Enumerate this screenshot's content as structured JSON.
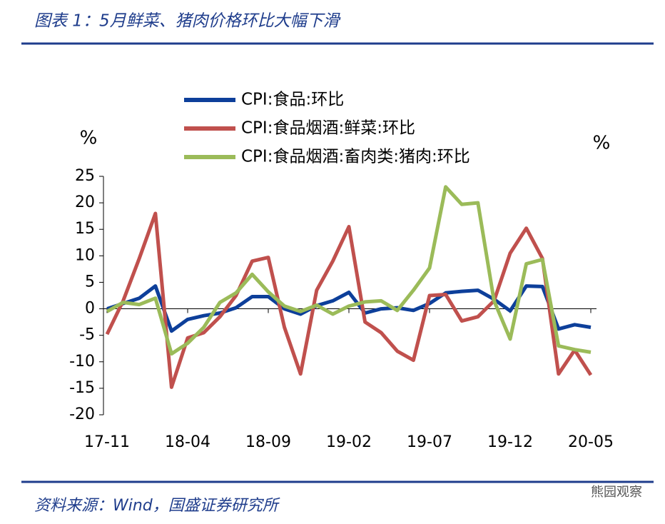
{
  "header": {
    "title": "图表 1：5月鲜菜、猪肉价格环比大幅下滑"
  },
  "footer": {
    "source": "资料来源：Wind，国盛证券研究所",
    "watermark": "熊园观察"
  },
  "chart_data": {
    "type": "line",
    "y_label": "%",
    "y2_label": "%",
    "categories": [
      "17-11",
      null,
      null,
      null,
      null,
      "18-04",
      null,
      null,
      null,
      null,
      "18-09",
      null,
      null,
      null,
      null,
      "19-02",
      null,
      null,
      null,
      null,
      "19-07",
      null,
      null,
      null,
      null,
      "19-12",
      null,
      null,
      null,
      null,
      "20-05"
    ],
    "series": [
      {
        "name": "CPI:食品:环比",
        "color": "#0d3f9a",
        "values": [
          0,
          1,
          2,
          4.3,
          -4.2,
          -2,
          -1.3,
          -0.8,
          0.2,
          2.3,
          2.3,
          0,
          -1,
          0.6,
          1.5,
          3.1,
          -0.8,
          0,
          0.2,
          -0.3,
          1,
          3,
          3.3,
          3.5,
          1.8,
          -0.4,
          4.3,
          4.2,
          -3.8,
          -3,
          -3.5
        ]
      },
      {
        "name": "CPI:食品烟酒:鲜菜:环比",
        "color": "#c0504d",
        "values": [
          -4.8,
          1.5,
          9.5,
          18,
          -14.8,
          -5.5,
          -4.5,
          -1.5,
          2.5,
          9,
          9.7,
          -3.5,
          -12.3,
          3.5,
          9,
          15.5,
          -2.5,
          -4.5,
          -8,
          -9.7,
          2.5,
          2.7,
          -2.3,
          -1.5,
          1.5,
          10.5,
          15.2,
          9.5,
          -12.3,
          -7.8,
          -12.5
        ]
      },
      {
        "name": "CPI:食品烟酒:畜肉类:猪肉:环比",
        "color": "#9bbb59",
        "values": [
          -0.5,
          1.2,
          0.8,
          2,
          -8.5,
          -6.5,
          -3.5,
          1.2,
          3,
          6.5,
          3.2,
          0.5,
          -0.5,
          0.7,
          -1,
          0.5,
          1.3,
          1.5,
          -0.3,
          3.5,
          7.7,
          23,
          19.7,
          20,
          1.5,
          -5.7,
          8.5,
          9.3,
          -7,
          -7.7,
          -8.2
        ]
      }
    ],
    "ylim": [
      -20,
      25
    ],
    "yticks": [
      -20,
      -15,
      -10,
      -5,
      0,
      5,
      10,
      15,
      20,
      25
    ]
  }
}
